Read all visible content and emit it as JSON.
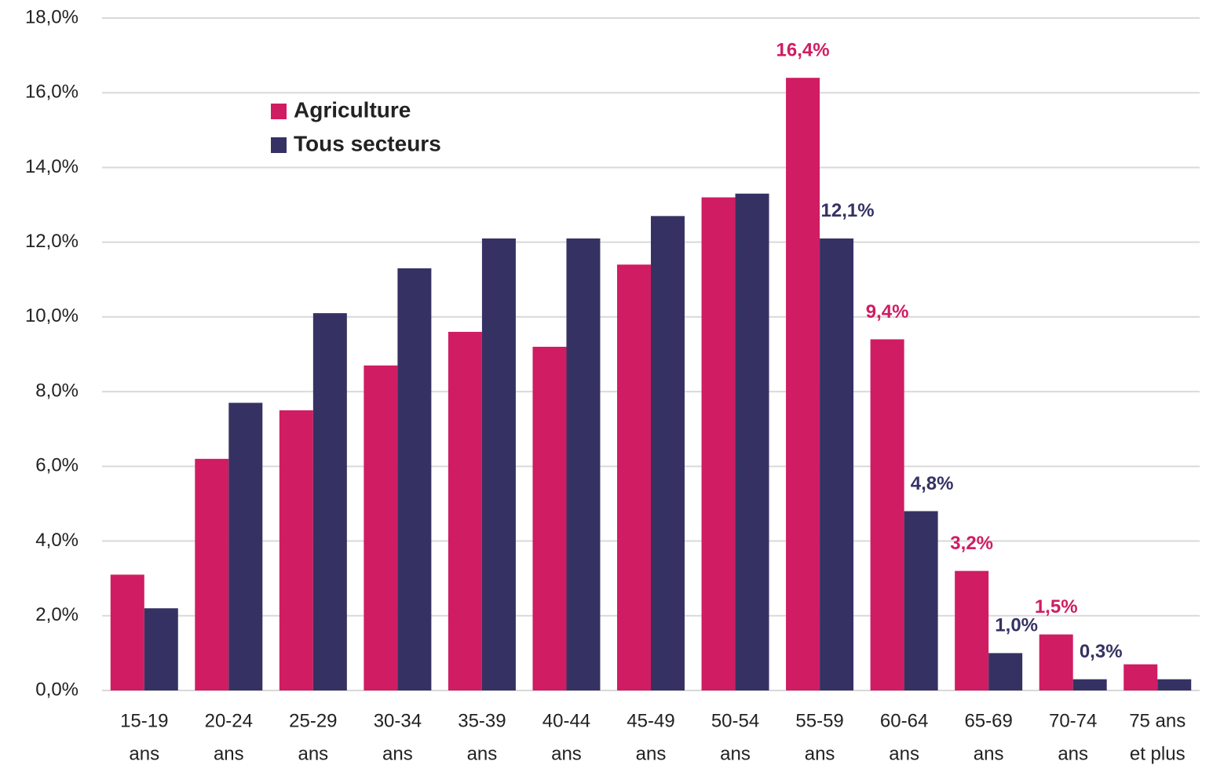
{
  "chart_data": {
    "type": "bar",
    "categories": [
      [
        "15-19",
        "ans"
      ],
      [
        "20-24",
        "ans"
      ],
      [
        "25-29",
        "ans"
      ],
      [
        "30-34",
        "ans"
      ],
      [
        "35-39",
        "ans"
      ],
      [
        "40-44",
        "ans"
      ],
      [
        "45-49",
        "ans"
      ],
      [
        "50-54",
        "ans"
      ],
      [
        "55-59",
        "ans"
      ],
      [
        "60-64",
        "ans"
      ],
      [
        "65-69",
        "ans"
      ],
      [
        "70-74",
        "ans"
      ],
      [
        "75 ans",
        "et plus"
      ]
    ],
    "series": [
      {
        "name": "Agriculture",
        "color": "#d01c62",
        "values": [
          3.1,
          6.2,
          7.5,
          8.7,
          9.6,
          9.2,
          11.4,
          13.2,
          16.4,
          9.4,
          3.2,
          1.5,
          0.7
        ],
        "value_labels": [
          null,
          null,
          null,
          null,
          null,
          null,
          null,
          null,
          "16,4%",
          "9,4%",
          "3,2%",
          "1,5%",
          null
        ]
      },
      {
        "name": "Tous secteurs",
        "color": "#353263",
        "values": [
          2.2,
          7.7,
          10.1,
          11.3,
          12.1,
          12.1,
          12.7,
          13.3,
          12.1,
          4.8,
          1.0,
          0.3,
          0.3
        ],
        "value_labels": [
          null,
          null,
          null,
          null,
          null,
          null,
          null,
          null,
          "12,1%",
          "4,8%",
          "1,0%",
          "0,3%",
          null
        ]
      }
    ],
    "ylim": [
      0,
      18
    ],
    "yticks": [
      {
        "value": 0,
        "label": "0,0%"
      },
      {
        "value": 2,
        "label": "2,0%"
      },
      {
        "value": 4,
        "label": "4,0%"
      },
      {
        "value": 6,
        "label": "6,0%"
      },
      {
        "value": 8,
        "label": "8,0%"
      },
      {
        "value": 10,
        "label": "10,0%"
      },
      {
        "value": 12,
        "label": "12,0%"
      },
      {
        "value": 14,
        "label": "14,0%"
      },
      {
        "value": 16,
        "label": "16,0%"
      },
      {
        "value": 18,
        "label": "18,0%"
      }
    ],
    "grid": true,
    "legend": "upper left"
  }
}
